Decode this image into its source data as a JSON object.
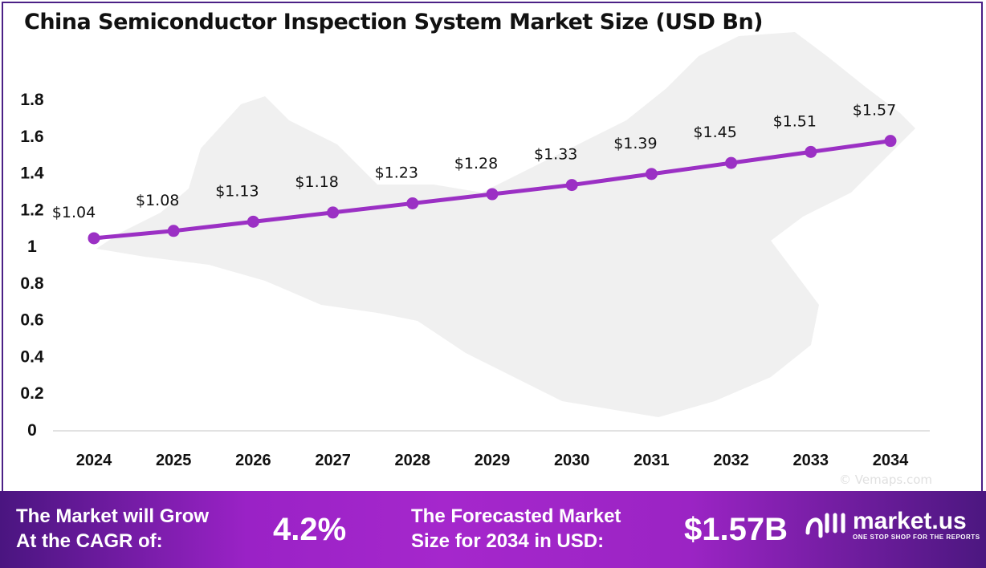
{
  "chart_data": {
    "type": "line",
    "title": "China Semiconductor Inspection System Market Size (USD Bn)",
    "categories": [
      "2024",
      "2025",
      "2026",
      "2027",
      "2028",
      "2029",
      "2030",
      "2031",
      "2032",
      "2033",
      "2034"
    ],
    "values": [
      1.04,
      1.08,
      1.13,
      1.18,
      1.23,
      1.28,
      1.33,
      1.39,
      1.45,
      1.51,
      1.57
    ],
    "data_labels": [
      "$1.04",
      "$1.08",
      "$1.13",
      "$1.18",
      "$1.23",
      "$1.28",
      "$1.33",
      "$1.39",
      "$1.45",
      "$1.51",
      "$1.57"
    ],
    "yticks": [
      "0",
      "0.2",
      "0.4",
      "0.6",
      "0.8",
      "1",
      "1.2",
      "1.4",
      "1.6",
      "1.8"
    ],
    "ylim": [
      0,
      1.8
    ],
    "xlabel": "",
    "ylabel": "",
    "grid": false,
    "line_color": "#9b30c4"
  },
  "footer": {
    "cagr_label_1": "The Market will Grow",
    "cagr_label_2": "At the CAGR of:",
    "cagr_value": "4.2%",
    "forecast_label_1": "The Forecasted Market",
    "forecast_label_2": "Size for 2034 in USD:",
    "forecast_value": "$1.57B",
    "brand": "market.us",
    "tagline": "ONE STOP SHOP FOR THE REPORTS"
  },
  "watermark": "© Vemaps.com"
}
